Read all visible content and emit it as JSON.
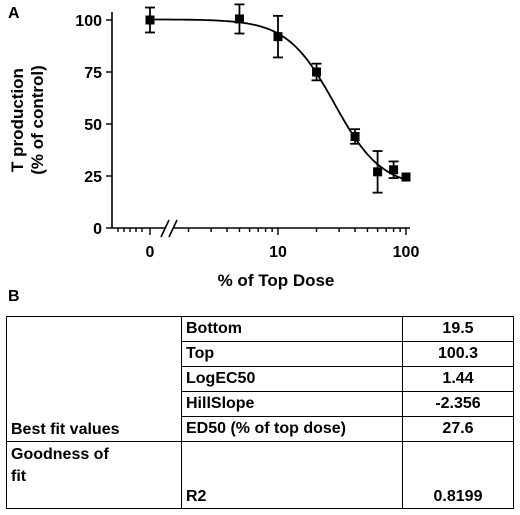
{
  "panel_a": "A",
  "panel_b": "B",
  "chart_data": {
    "type": "scatter",
    "title": "",
    "xlabel": "% of Top Dose",
    "ylabel_line1": "T production",
    "ylabel_line2": "(% of control)",
    "x_scale": "log (with broken axis at 0)",
    "ylim": [
      0,
      100
    ],
    "yticks": [
      "0",
      "25",
      "50",
      "75",
      "100"
    ],
    "xticks": [
      "0",
      "10",
      "100"
    ],
    "points": [
      {
        "x": 0,
        "y": 100,
        "err": 6
      },
      {
        "x": 5,
        "y": 100.5,
        "err": 7
      },
      {
        "x": 10,
        "y": 92,
        "err": 10
      },
      {
        "x": 20,
        "y": 75,
        "err": 4
      },
      {
        "x": 40,
        "y": 44,
        "err": 3.5
      },
      {
        "x": 60,
        "y": 27,
        "err": 10
      },
      {
        "x": 80,
        "y": 28,
        "err": 4
      },
      {
        "x": 100,
        "y": 24.5,
        "err": 0
      }
    ],
    "fit": {
      "bottom": 19.5,
      "top": 100.3,
      "log_ec50": 1.44,
      "hill_slope": -2.356
    },
    "grid": false,
    "legend": "none"
  },
  "table": {
    "section_label": "Best fit values",
    "rows": [
      {
        "param": "Bottom",
        "value": "19.5"
      },
      {
        "param": "Top",
        "value": "100.3"
      },
      {
        "param": "LogEC50",
        "value": "1.44"
      },
      {
        "param": "HillSlope",
        "value": "-2.356"
      },
      {
        "param": "ED50 (% of top dose)",
        "value": "27.6"
      }
    ],
    "gof_label_line1": "Goodness of",
    "gof_label_line2": "fit",
    "gof_param": "R2",
    "gof_value": "0.8199"
  }
}
